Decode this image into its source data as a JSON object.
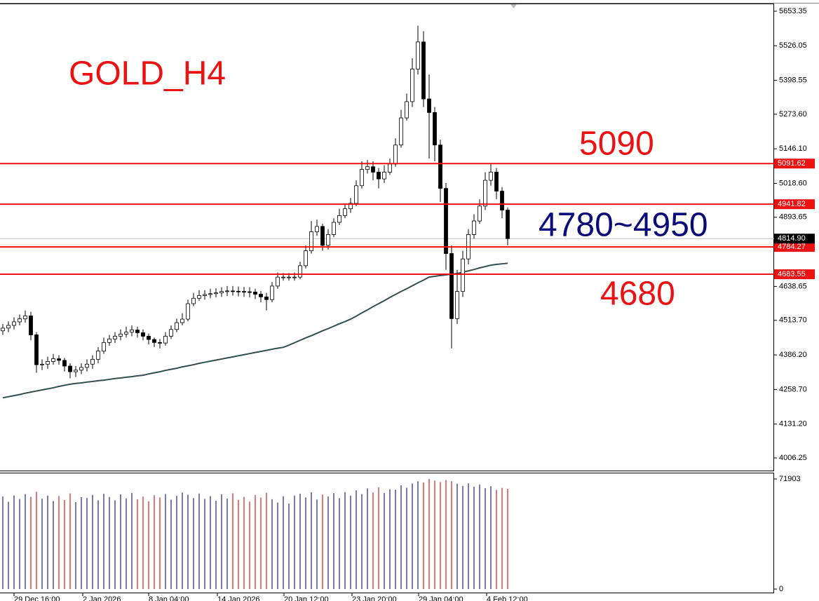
{
  "chart_data": {
    "type": "candlestick",
    "title": "GOLD_H4",
    "annotations": [
      {
        "text": "5090",
        "color": "#ee1111"
      },
      {
        "text": "4780~4950",
        "color": "#0a0a7a"
      },
      {
        "text": "4680",
        "color": "#ee1111"
      }
    ],
    "ylim": [
      4006.25,
      5653.35
    ],
    "yticks": [
      {
        "value": 5653.35,
        "label": "5653.35"
      },
      {
        "value": 5526.05,
        "label": "5526.05"
      },
      {
        "value": 5398.55,
        "label": "5398.55"
      },
      {
        "value": 5273.6,
        "label": "5273.60"
      },
      {
        "value": 5146.1,
        "label": "5146.10"
      },
      {
        "value": 5018.6,
        "label": "5018.60"
      },
      {
        "value": 4893.65,
        "label": "4893.65"
      },
      {
        "value": 4638.65,
        "label": "4638.65"
      },
      {
        "value": 4513.7,
        "label": "4513.70"
      },
      {
        "value": 4386.2,
        "label": "4386.20"
      },
      {
        "value": 4258.7,
        "label": "4258.70"
      },
      {
        "value": 4131.2,
        "label": "4131.20"
      },
      {
        "value": 4006.25,
        "label": "4006.25"
      }
    ],
    "levels": [
      {
        "value": 5091.62,
        "label": "5091.62"
      },
      {
        "value": 4941.82,
        "label": "4941.82"
      },
      {
        "value": 4784.27,
        "label": "4784.27"
      },
      {
        "value": 4683.55,
        "label": "4683.55"
      }
    ],
    "level_color": "#ee1111",
    "current_price": {
      "value": 4814.9,
      "label": "4814.90"
    },
    "xlabels": [
      "29 Dec 16:00",
      "2 Jan 2026",
      "8 Jan 04:00",
      "14 Jan 2026",
      "20 Jan 12:00",
      "23 Jan 20:00",
      "29 Jan 04:00",
      "4 Feb 12:00"
    ],
    "open": [
      4475,
      4485,
      4495,
      4508,
      4519,
      4530,
      4460,
      4350,
      4352,
      4362,
      4372,
      4366,
      4345,
      4324,
      4330,
      4340,
      4352,
      4370,
      4400,
      4432,
      4445,
      4455,
      4463,
      4470,
      4478,
      4468,
      4455,
      4443,
      4432,
      4430,
      4455,
      4480,
      4505,
      4518,
      4575,
      4595,
      4605,
      4609,
      4612,
      4615,
      4620,
      4622,
      4621,
      4620,
      4619,
      4618,
      4610,
      4600,
      4590,
      4640,
      4673,
      4673,
      4673,
      4673,
      4715,
      4770,
      4840,
      4860,
      4790,
      4830,
      4875,
      4900,
      4925,
      4945,
      5010,
      5070,
      5080,
      5060,
      5035,
      5060,
      5090,
      5160,
      5260,
      5320,
      5440,
      5540,
      5330,
      5280,
      5160,
      5000,
      4760,
      4520,
      4620,
      4740,
      4830,
      4880,
      4935,
      5030,
      5060,
      4990,
      4920
    ],
    "high": [
      4500,
      4510,
      4525,
      4535,
      4550,
      4545,
      4470,
      4370,
      4380,
      4390,
      4385,
      4375,
      4355,
      4345,
      4355,
      4370,
      4385,
      4415,
      4450,
      4460,
      4470,
      4480,
      4490,
      4495,
      4490,
      4480,
      4465,
      4450,
      4445,
      4470,
      4495,
      4520,
      4540,
      4590,
      4615,
      4625,
      4625,
      4630,
      4632,
      4636,
      4640,
      4640,
      4638,
      4637,
      4636,
      4630,
      4622,
      4615,
      4655,
      4690,
      4688,
      4688,
      4690,
      4730,
      4790,
      4880,
      4885,
      4870,
      4850,
      4890,
      4925,
      4945,
      4965,
      5030,
      5100,
      5105,
      5100,
      5075,
      5085,
      5110,
      5185,
      5290,
      5350,
      5480,
      5600,
      5580,
      5420,
      5300,
      5180,
      5020,
      4790,
      4700,
      4770,
      4850,
      4905,
      4960,
      5060,
      5090,
      5075,
      5005,
      4930
    ],
    "low": [
      4460,
      4470,
      4480,
      4495,
      4505,
      4440,
      4320,
      4330,
      4335,
      4350,
      4350,
      4325,
      4300,
      4305,
      4315,
      4325,
      4335,
      4355,
      4390,
      4420,
      4430,
      4440,
      4450,
      4455,
      4450,
      4440,
      4425,
      4415,
      4410,
      4420,
      4445,
      4470,
      4495,
      4510,
      4565,
      4585,
      4590,
      4595,
      4598,
      4600,
      4603,
      4605,
      4602,
      4600,
      4598,
      4592,
      4580,
      4550,
      4580,
      4630,
      4660,
      4660,
      4660,
      4665,
      4705,
      4760,
      4825,
      4770,
      4775,
      4820,
      4865,
      4890,
      4910,
      4935,
      5000,
      5055,
      5030,
      5000,
      5020,
      5050,
      5080,
      5150,
      5250,
      5300,
      5420,
      5300,
      5110,
      5100,
      4950,
      4700,
      4410,
      4500,
      4600,
      4720,
      4815,
      4870,
      4920,
      5010,
      4960,
      4890,
      4790
    ],
    "close": [
      4485,
      4495,
      4508,
      4519,
      4530,
      4460,
      4350,
      4352,
      4362,
      4372,
      4366,
      4345,
      4324,
      4330,
      4340,
      4352,
      4370,
      4400,
      4432,
      4445,
      4455,
      4463,
      4470,
      4478,
      4468,
      4455,
      4443,
      4432,
      4430,
      4455,
      4480,
      4505,
      4518,
      4575,
      4595,
      4605,
      4609,
      4612,
      4615,
      4620,
      4622,
      4621,
      4620,
      4619,
      4618,
      4610,
      4600,
      4590,
      4640,
      4673,
      4673,
      4673,
      4673,
      4715,
      4770,
      4840,
      4860,
      4790,
      4830,
      4875,
      4900,
      4925,
      4945,
      5010,
      5070,
      5080,
      5060,
      5035,
      5060,
      5090,
      5160,
      5260,
      5320,
      5440,
      5540,
      5330,
      5280,
      5160,
      5000,
      4760,
      4520,
      4620,
      4740,
      4830,
      4880,
      4935,
      5030,
      5060,
      4990,
      4920,
      4815
    ],
    "ma": {
      "color": "#2f4f4f",
      "values": [
        4228,
        4232,
        4236,
        4240,
        4245,
        4249,
        4253,
        4257,
        4261,
        4265,
        4270,
        4274,
        4278,
        4281,
        4283,
        4286,
        4288,
        4291,
        4293,
        4296,
        4299,
        4301,
        4304,
        4306,
        4309,
        4311,
        4316,
        4320,
        4324,
        4329,
        4333,
        4337,
        4342,
        4346,
        4350,
        4355,
        4359,
        4363,
        4367,
        4371,
        4375,
        4379,
        4383,
        4387,
        4391,
        4395,
        4399,
        4403,
        4407,
        4411,
        4414,
        4422,
        4431,
        4440,
        4449,
        4457,
        4466,
        4475,
        4483,
        4492,
        4501,
        4509,
        4518,
        4529,
        4541,
        4552,
        4564,
        4575,
        4586,
        4598,
        4609,
        4620,
        4630,
        4641,
        4652,
        4662,
        4673,
        4676,
        4679,
        4681,
        4684,
        4686,
        4691,
        4696,
        4701,
        4707,
        4712,
        4717,
        4720,
        4722,
        4724
      ]
    },
    "volume": {
      "up_color": "#1c1c9c",
      "down_color": "#cc2222",
      "ylim": [
        0,
        71903
      ],
      "yticks": [
        71903,
        0
      ],
      "values": [
        60500,
        57000,
        61200,
        58800,
        62000,
        60300,
        63500,
        59000,
        61000,
        57500,
        60800,
        58200,
        62500,
        56800,
        60000,
        59500,
        61500,
        58000,
        62200,
        60100,
        57900,
        61800,
        59200,
        62800,
        58600,
        60400,
        57300,
        61300,
        59800,
        62100,
        58400,
        60900,
        63000,
        61600,
        59400,
        62400,
        58900,
        60700,
        57700,
        61900,
        59100,
        62600,
        58300,
        60200,
        57100,
        61400,
        59700,
        62900,
        58700,
        56500,
        60600,
        55800,
        61100,
        62300,
        59900,
        63200,
        58500,
        61700,
        60500,
        62700,
        59300,
        63400,
        61000,
        64500,
        62000,
        65800,
        63100,
        66400,
        62800,
        65200,
        64900,
        67800,
        66200,
        68900,
        70400,
        69600,
        71903,
        70800,
        69900,
        71200,
        70500,
        68800,
        67400,
        69100,
        66800,
        68300,
        65900,
        67200,
        64800,
        66100,
        65500
      ]
    }
  }
}
